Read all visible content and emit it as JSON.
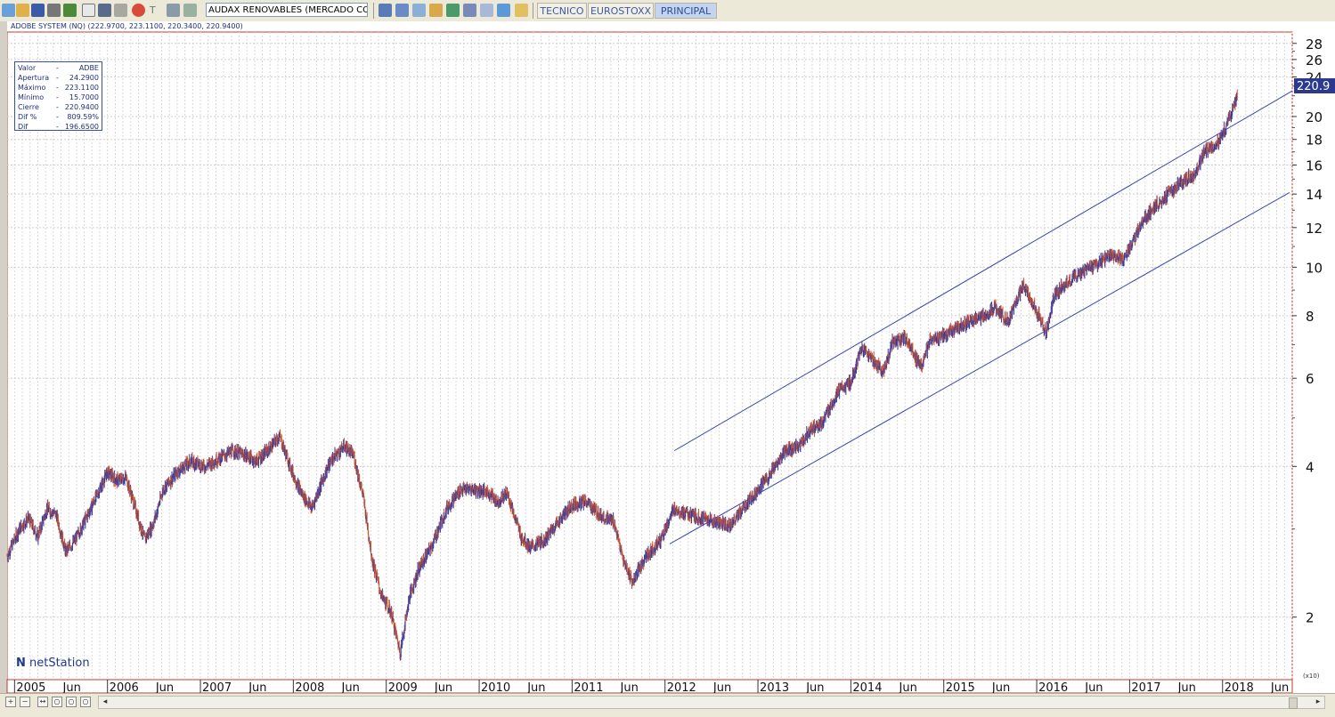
{
  "toolbar": {
    "symbol_input": "AUDAX RENOVABLES (MERCADO CONTINU",
    "tabs": [
      {
        "label": "TECNICO",
        "active": false
      },
      {
        "label": "EUROSTOXX",
        "active": false
      },
      {
        "label": "PRINCIPAL",
        "active": true
      }
    ]
  },
  "chart_header": "ADOBE SYSTEM (NQ) (222.9700, 223.1100, 220.3400, 220.9400)",
  "info_box": [
    {
      "label": "Valor",
      "value": "ADBE"
    },
    {
      "label": "Apertura",
      "value": "24.2900"
    },
    {
      "label": "Máximo",
      "value": "223.1100"
    },
    {
      "label": "Mínimo",
      "value": "15.7000"
    },
    {
      "label": "Cierre",
      "value": "220.9400"
    },
    {
      "label": "Dif %",
      "value": "809.59%"
    },
    {
      "label": "Dif",
      "value": "196.6500"
    }
  ],
  "info_dash": "-",
  "brand": "netStation",
  "scale_note": "(x10)",
  "last_price_label": "220.9",
  "colors": {
    "up": "#2c3aa8",
    "down": "#d2552a",
    "channel": "#3a47b0",
    "frame": "#c0392b",
    "price_tag_bg": "#2b3a8f"
  },
  "chart_data": {
    "type": "line",
    "title": "ADOBE SYSTEM (NQ)",
    "y_scale": "log",
    "y_multiplier": "x10",
    "y_ticks": [
      2,
      4,
      6,
      8,
      10,
      12,
      14,
      16,
      18,
      20,
      24,
      26,
      28
    ],
    "ylim": [
      1.5,
      29.5
    ],
    "xlim": [
      2004.92,
      2018.75
    ],
    "x_tick_labels": [
      {
        "x": 2005.0,
        "label": "2005"
      },
      {
        "x": 2005.5,
        "label": "Jun"
      },
      {
        "x": 2006.0,
        "label": "2006"
      },
      {
        "x": 2006.5,
        "label": "Jun"
      },
      {
        "x": 2007.0,
        "label": "2007"
      },
      {
        "x": 2007.5,
        "label": "Jun"
      },
      {
        "x": 2008.0,
        "label": "2008"
      },
      {
        "x": 2008.5,
        "label": "Jun"
      },
      {
        "x": 2009.0,
        "label": "2009"
      },
      {
        "x": 2009.5,
        "label": "Jun"
      },
      {
        "x": 2010.0,
        "label": "2010"
      },
      {
        "x": 2010.5,
        "label": "Jun"
      },
      {
        "x": 2011.0,
        "label": "2011"
      },
      {
        "x": 2011.5,
        "label": "Jun"
      },
      {
        "x": 2012.0,
        "label": "2012"
      },
      {
        "x": 2012.5,
        "label": "Jun"
      },
      {
        "x": 2013.0,
        "label": "2013"
      },
      {
        "x": 2013.5,
        "label": "Jun"
      },
      {
        "x": 2014.0,
        "label": "2014"
      },
      {
        "x": 2014.5,
        "label": "Jun"
      },
      {
        "x": 2015.0,
        "label": "2015"
      },
      {
        "x": 2015.5,
        "label": "Jun"
      },
      {
        "x": 2016.0,
        "label": "2016"
      },
      {
        "x": 2016.5,
        "label": "Jun"
      },
      {
        "x": 2017.0,
        "label": "2017"
      },
      {
        "x": 2017.5,
        "label": "Jun"
      },
      {
        "x": 2018.0,
        "label": "2018"
      },
      {
        "x": 2018.5,
        "label": "Jun"
      }
    ],
    "series": [
      {
        "values": [
          [
            2004.92,
            2.65
          ],
          [
            2005.05,
            3.0
          ],
          [
            2005.15,
            3.15
          ],
          [
            2005.25,
            2.9
          ],
          [
            2005.35,
            3.3
          ],
          [
            2005.45,
            3.2
          ],
          [
            2005.55,
            2.7
          ],
          [
            2005.65,
            2.85
          ],
          [
            2005.75,
            3.1
          ],
          [
            2005.9,
            3.55
          ],
          [
            2006.0,
            3.9
          ],
          [
            2006.1,
            3.75
          ],
          [
            2006.2,
            3.8
          ],
          [
            2006.3,
            3.3
          ],
          [
            2006.4,
            2.85
          ],
          [
            2006.5,
            3.1
          ],
          [
            2006.6,
            3.6
          ],
          [
            2006.75,
            3.9
          ],
          [
            2006.9,
            4.1
          ],
          [
            2007.05,
            4.0
          ],
          [
            2007.2,
            4.15
          ],
          [
            2007.35,
            4.3
          ],
          [
            2007.5,
            4.2
          ],
          [
            2007.6,
            4.1
          ],
          [
            2007.75,
            4.35
          ],
          [
            2007.85,
            4.6
          ],
          [
            2008.0,
            3.85
          ],
          [
            2008.1,
            3.5
          ],
          [
            2008.2,
            3.3
          ],
          [
            2008.3,
            3.7
          ],
          [
            2008.4,
            4.1
          ],
          [
            2008.55,
            4.4
          ],
          [
            2008.65,
            4.2
          ],
          [
            2008.75,
            3.5
          ],
          [
            2008.85,
            2.6
          ],
          [
            2008.95,
            2.2
          ],
          [
            2009.05,
            2.05
          ],
          [
            2009.15,
            1.7
          ],
          [
            2009.25,
            2.2
          ],
          [
            2009.35,
            2.5
          ],
          [
            2009.5,
            2.8
          ],
          [
            2009.65,
            3.3
          ],
          [
            2009.8,
            3.6
          ],
          [
            2009.95,
            3.6
          ],
          [
            2010.1,
            3.55
          ],
          [
            2010.2,
            3.4
          ],
          [
            2010.3,
            3.55
          ],
          [
            2010.45,
            2.9
          ],
          [
            2010.55,
            2.75
          ],
          [
            2010.7,
            2.85
          ],
          [
            2010.85,
            3.1
          ],
          [
            2011.0,
            3.35
          ],
          [
            2011.15,
            3.4
          ],
          [
            2011.3,
            3.2
          ],
          [
            2011.45,
            3.1
          ],
          [
            2011.55,
            2.6
          ],
          [
            2011.65,
            2.35
          ],
          [
            2011.8,
            2.65
          ],
          [
            2011.95,
            2.85
          ],
          [
            2012.1,
            3.3
          ],
          [
            2012.25,
            3.2
          ],
          [
            2012.4,
            3.15
          ],
          [
            2012.55,
            3.1
          ],
          [
            2012.7,
            3.05
          ],
          [
            2012.85,
            3.3
          ],
          [
            2013.0,
            3.6
          ],
          [
            2013.15,
            3.9
          ],
          [
            2013.3,
            4.3
          ],
          [
            2013.45,
            4.4
          ],
          [
            2013.55,
            4.7
          ],
          [
            2013.7,
            4.9
          ],
          [
            2013.85,
            5.6
          ],
          [
            2014.0,
            5.9
          ],
          [
            2014.12,
            6.9
          ],
          [
            2014.25,
            6.5
          ],
          [
            2014.35,
            6.2
          ],
          [
            2014.45,
            7.1
          ],
          [
            2014.6,
            7.2
          ],
          [
            2014.75,
            6.3
          ],
          [
            2014.85,
            7.1
          ],
          [
            2015.0,
            7.3
          ],
          [
            2015.15,
            7.6
          ],
          [
            2015.3,
            7.8
          ],
          [
            2015.45,
            8.0
          ],
          [
            2015.55,
            8.3
          ],
          [
            2015.7,
            7.8
          ],
          [
            2015.85,
            9.2
          ],
          [
            2016.0,
            8.2
          ],
          [
            2016.1,
            7.4
          ],
          [
            2016.2,
            8.9
          ],
          [
            2016.35,
            9.4
          ],
          [
            2016.5,
            9.8
          ],
          [
            2016.65,
            10.2
          ],
          [
            2016.8,
            10.6
          ],
          [
            2016.95,
            10.4
          ],
          [
            2017.05,
            11.4
          ],
          [
            2017.15,
            12.5
          ],
          [
            2017.3,
            13.4
          ],
          [
            2017.45,
            14.2
          ],
          [
            2017.6,
            15.0
          ],
          [
            2017.7,
            15.3
          ],
          [
            2017.8,
            17.0
          ],
          [
            2017.9,
            17.5
          ],
          [
            2017.97,
            18.0
          ],
          [
            2018.05,
            19.3
          ],
          [
            2018.1,
            20.5
          ],
          [
            2018.16,
            22.09
          ]
        ]
      }
    ],
    "trend_lines": [
      {
        "name": "upper",
        "points": [
          [
            2012.1,
            4.3
          ],
          [
            2018.75,
            22.5
          ]
        ]
      },
      {
        "name": "lower",
        "points": [
          [
            2012.05,
            2.8
          ],
          [
            2018.72,
            14.1
          ]
        ]
      }
    ]
  }
}
